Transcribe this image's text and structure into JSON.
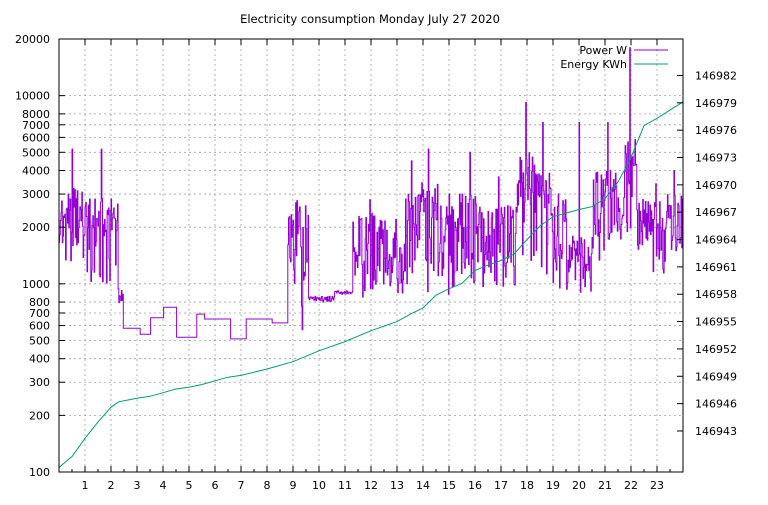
{
  "chart_data": {
    "type": "line",
    "title": "Electricity consumption Monday July 27 2020",
    "xlabel": "",
    "ylabel": "",
    "y2label": "",
    "x_ticks": [
      1,
      2,
      3,
      4,
      5,
      6,
      7,
      8,
      9,
      10,
      11,
      12,
      13,
      14,
      15,
      16,
      17,
      18,
      19,
      20,
      21,
      22,
      23
    ],
    "xlim": [
      0,
      24
    ],
    "y": {
      "scale": "log",
      "ylim": [
        100,
        20000
      ],
      "ticks": [
        100,
        200,
        300,
        400,
        500,
        600,
        700,
        800,
        1000,
        2000,
        3000,
        4000,
        5000,
        6000,
        7000,
        8000,
        10000,
        20000
      ]
    },
    "y2": {
      "scale": "linear",
      "ylim": [
        146938.5,
        146986
      ],
      "ticks": [
        146943,
        146946,
        146949,
        146952,
        146955,
        146958,
        146961,
        146964,
        146967,
        146970,
        146973,
        146976,
        146979,
        146982
      ]
    },
    "grid": true,
    "legend": "top-right",
    "series": [
      {
        "name": "Power W",
        "axis": "y",
        "color": "#9400d3",
        "style": "oscillating",
        "segments": [
          {
            "x0": 0.0,
            "x1": 1.0,
            "low": 1300,
            "high": 3300,
            "peak": 5200
          },
          {
            "x0": 1.0,
            "x1": 2.25,
            "low": 1000,
            "high": 3000,
            "peak": 5200
          },
          {
            "x0": 2.25,
            "x1": 2.45,
            "low": 780,
            "high": 1000,
            "peak": 1000
          },
          {
            "x0": 2.45,
            "x1": 3.1,
            "low": 580,
            "high": 580,
            "peak": 580
          },
          {
            "x0": 3.1,
            "x1": 3.5,
            "low": 540,
            "high": 540,
            "peak": 540
          },
          {
            "x0": 3.5,
            "x1": 4.0,
            "low": 660,
            "high": 660,
            "peak": 660
          },
          {
            "x0": 4.0,
            "x1": 4.5,
            "low": 750,
            "high": 750,
            "peak": 750
          },
          {
            "x0": 4.5,
            "x1": 5.3,
            "low": 520,
            "high": 520,
            "peak": 520
          },
          {
            "x0": 5.3,
            "x1": 5.6,
            "low": 690,
            "high": 690,
            "peak": 690
          },
          {
            "x0": 5.6,
            "x1": 6.6,
            "low": 650,
            "high": 650,
            "peak": 650
          },
          {
            "x0": 6.6,
            "x1": 7.2,
            "low": 510,
            "high": 510,
            "peak": 510
          },
          {
            "x0": 7.2,
            "x1": 8.2,
            "low": 650,
            "high": 650,
            "peak": 650
          },
          {
            "x0": 8.2,
            "x1": 8.8,
            "low": 620,
            "high": 620,
            "peak": 620
          },
          {
            "x0": 8.8,
            "x1": 9.6,
            "low": 500,
            "high": 2800,
            "peak": 2800
          },
          {
            "x0": 9.6,
            "x1": 10.6,
            "low": 800,
            "high": 860,
            "peak": 860
          },
          {
            "x0": 10.6,
            "x1": 11.3,
            "low": 880,
            "high": 920,
            "peak": 920
          },
          {
            "x0": 11.3,
            "x1": 12.6,
            "low": 850,
            "high": 2400,
            "peak": 2800
          },
          {
            "x0": 12.6,
            "x1": 13.3,
            "low": 860,
            "high": 2000,
            "peak": 2200
          },
          {
            "x0": 13.3,
            "x1": 13.8,
            "low": 1000,
            "high": 3000,
            "peak": 4500
          },
          {
            "x0": 13.8,
            "x1": 14.6,
            "low": 880,
            "high": 3500,
            "peak": 5200
          },
          {
            "x0": 14.6,
            "x1": 15.4,
            "low": 850,
            "high": 2600,
            "peak": 3000
          },
          {
            "x0": 15.4,
            "x1": 16.2,
            "low": 960,
            "high": 3000,
            "peak": 5000
          },
          {
            "x0": 16.2,
            "x1": 17.6,
            "low": 920,
            "high": 2700,
            "peak": 3700
          },
          {
            "x0": 17.6,
            "x1": 18.3,
            "low": 1100,
            "high": 5000,
            "peak": 9200
          },
          {
            "x0": 18.3,
            "x1": 18.9,
            "low": 1100,
            "high": 4000,
            "peak": 7200
          },
          {
            "x0": 18.9,
            "x1": 19.5,
            "low": 860,
            "high": 2800,
            "peak": 3000
          },
          {
            "x0": 19.5,
            "x1": 20.5,
            "low": 900,
            "high": 1800,
            "peak": 7200
          },
          {
            "x0": 20.5,
            "x1": 21.7,
            "low": 1300,
            "high": 4000,
            "peak": 7200
          },
          {
            "x0": 21.7,
            "x1": 22.2,
            "low": 1600,
            "high": 6000,
            "peak": 18000
          },
          {
            "x0": 22.2,
            "x1": 22.6,
            "low": 1500,
            "high": 3000,
            "peak": 3000
          },
          {
            "x0": 22.6,
            "x1": 23.3,
            "low": 1100,
            "high": 2800,
            "peak": 3400
          },
          {
            "x0": 23.3,
            "x1": 24.0,
            "low": 1300,
            "high": 3000,
            "peak": 4000
          }
        ]
      },
      {
        "name": "Energy KWh",
        "axis": "y2",
        "color": "#009e73",
        "x": [
          0.0,
          0.5,
          1.0,
          1.5,
          2.0,
          2.3,
          3.0,
          3.5,
          4.0,
          4.5,
          5.0,
          5.5,
          6.0,
          6.5,
          7.0,
          8.0,
          9.0,
          10.0,
          11.0,
          12.0,
          13.0,
          13.5,
          14.0,
          14.5,
          15.0,
          15.5,
          16.0,
          16.5,
          17.0,
          17.5,
          18.0,
          18.5,
          19.0,
          19.5,
          20.0,
          20.5,
          21.0,
          21.5,
          22.0,
          22.5,
          23.0,
          23.5,
          24.0
        ],
        "values": [
          146939.0,
          146940.2,
          146942.2,
          146944.0,
          146945.6,
          146946.2,
          146946.6,
          146946.8,
          146947.2,
          146947.6,
          146947.8,
          146948.1,
          146948.5,
          146948.9,
          146949.1,
          146949.8,
          146950.6,
          146951.8,
          146952.8,
          146954.0,
          146955.0,
          146955.8,
          146956.5,
          146957.9,
          146958.6,
          146959.2,
          146960.6,
          146961.2,
          146961.7,
          146962.4,
          146964.0,
          146965.5,
          146966.5,
          146966.9,
          146967.3,
          146967.6,
          146968.5,
          146970.3,
          146973.0,
          146976.5,
          146977.3,
          146978.2,
          146979.1
        ]
      }
    ]
  }
}
